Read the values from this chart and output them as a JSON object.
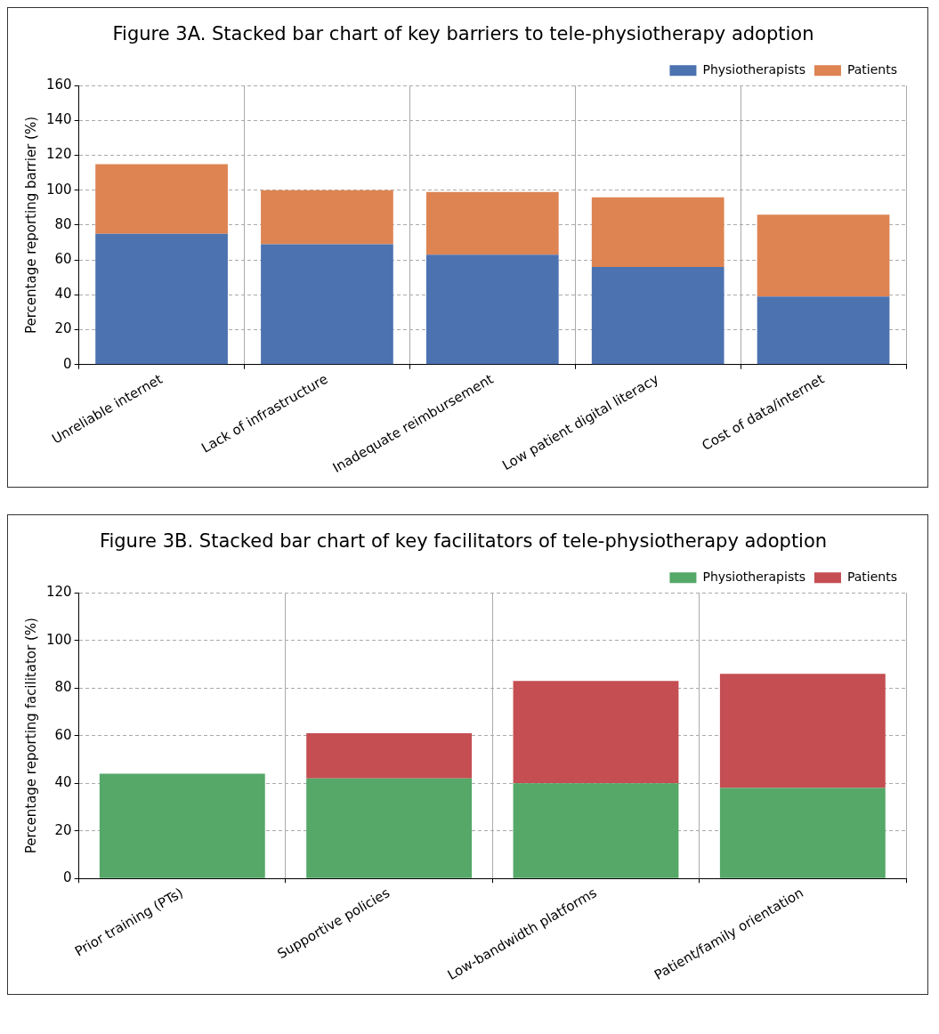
{
  "chart_data": [
    {
      "type": "bar",
      "title": "Figure 3A. Stacked bar chart of key barriers to tele-physiotherapy adoption",
      "ylabel": "Percentage reporting barrier (%)",
      "categories": [
        "Unreliable internet",
        "Lack of infrastructure",
        "Inadequate reimbursement",
        "Low patient digital literacy",
        "Cost of data/internet"
      ],
      "stacked": true,
      "series": [
        {
          "name": "Physiotherapists",
          "color": "#4c72b0",
          "values": [
            75,
            69,
            63,
            56,
            39
          ]
        },
        {
          "name": "Patients",
          "color": "#dd8452",
          "values": [
            40,
            31,
            36,
            40,
            47
          ]
        }
      ],
      "ylim": [
        0,
        160
      ],
      "yticks": [
        0,
        20,
        40,
        60,
        80,
        100,
        120,
        140,
        160
      ],
      "grid": true,
      "legend": "top right"
    },
    {
      "type": "bar",
      "title": "Figure 3B. Stacked bar chart of key facilitators of tele-physiotherapy adoption",
      "ylabel": "Percentage reporting facilitator (%)",
      "categories": [
        "Prior training (PTs)",
        "Supportive policies",
        "Low-bandwidth platforms",
        "Patient/family orientation"
      ],
      "stacked": true,
      "series": [
        {
          "name": "Physiotherapists",
          "color": "#55a868",
          "values": [
            44,
            42,
            40,
            38
          ]
        },
        {
          "name": "Patients",
          "color": "#c44e52",
          "values": [
            0,
            19,
            43,
            48
          ]
        }
      ],
      "ylim": [
        0,
        120
      ],
      "yticks": [
        0,
        20,
        40,
        60,
        80,
        100,
        120
      ],
      "grid": true,
      "legend": "top right"
    }
  ]
}
